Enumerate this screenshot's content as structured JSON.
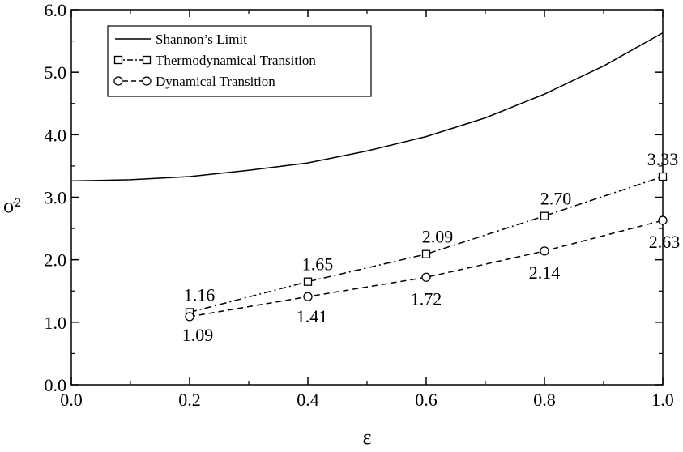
{
  "chart_data": {
    "type": "line",
    "xlabel": "ε",
    "ylabel": "σ²",
    "xlim": [
      0.0,
      1.0
    ],
    "ylim": [
      0.0,
      6.0
    ],
    "x_ticks": [
      "0.0",
      "0.2",
      "0.4",
      "0.6",
      "0.8",
      "1.0"
    ],
    "y_ticks": [
      "0.0",
      "1.0",
      "2.0",
      "3.0",
      "4.0",
      "5.0",
      "6.0"
    ],
    "grid": false,
    "legend_position": "top-left",
    "series": [
      {
        "name": "Shannon’s Limit",
        "style": "solid",
        "marker": "none",
        "x": [
          0.0,
          0.1,
          0.2,
          0.3,
          0.4,
          0.5,
          0.6,
          0.7,
          0.8,
          0.9,
          1.0
        ],
        "y": [
          3.26,
          3.28,
          3.33,
          3.43,
          3.55,
          3.74,
          3.97,
          4.27,
          4.65,
          5.1,
          5.63
        ]
      },
      {
        "name": "Thermodynamical Transition",
        "style": "dash-dot",
        "marker": "square",
        "x": [
          0.2,
          0.4,
          0.6,
          0.8,
          1.0
        ],
        "y": [
          1.16,
          1.65,
          2.09,
          2.7,
          3.33
        ],
        "labels": [
          "1.16",
          "1.65",
          "2.09",
          "2.70",
          "3.33"
        ]
      },
      {
        "name": "Dynamical Transition",
        "style": "dashed",
        "marker": "circle",
        "x": [
          0.2,
          0.4,
          0.6,
          0.8,
          1.0
        ],
        "y": [
          1.09,
          1.41,
          1.72,
          2.14,
          2.63
        ],
        "labels": [
          "1.09",
          "1.41",
          "1.72",
          "2.14",
          "2.63"
        ]
      }
    ]
  }
}
